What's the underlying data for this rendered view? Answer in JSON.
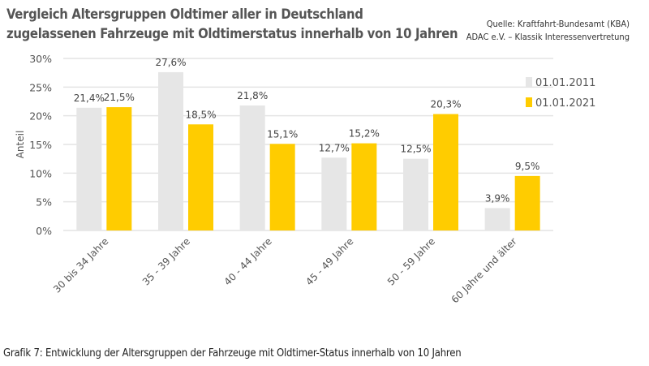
{
  "chart_data": {
    "type": "bar",
    "title": [
      "Vergleich Altersgruppen Oldtimer aller in Deutschland",
      "zugelassenen Fahrzeuge mit Oldtimerstatus innerhalb von 10 Jahren"
    ],
    "source": [
      "Quelle: Kraftfahrt-Bundesamt (KBA)",
      "ADAC e.V. – Klassik Interessenvertretung"
    ],
    "caption": "Grafik 7: Entwicklung der Altersgruppen der Fahrzeuge mit Oldtimer-Status innerhalb von 10 Jahren",
    "ylabel": "Anteil",
    "xlabel": "",
    "ylim": [
      0,
      30
    ],
    "yticks": [
      "0%",
      "5%",
      "10%",
      "15%",
      "20%",
      "25%",
      "30%"
    ],
    "grid": true,
    "legend_position": "right",
    "categories": [
      "30 bis 34 Jahre",
      "35 - 39 Jahre",
      "40 - 44 Jahre",
      "45 - 49 Jahre",
      "50 - 59 Jahre",
      "60 Jahre und älter"
    ],
    "series": [
      {
        "name": "01.01.2011",
        "color": "#e6e6e6",
        "values": [
          21.4,
          27.6,
          21.8,
          12.7,
          12.5,
          3.9
        ],
        "labels": [
          "21,4%",
          "27,6%",
          "21,8%",
          "12,7%",
          "12,5%",
          "3,9%"
        ]
      },
      {
        "name": "01.01.2021",
        "color": "#ffcc00",
        "values": [
          21.5,
          18.5,
          15.1,
          15.2,
          20.3,
          9.5
        ],
        "labels": [
          "21,5%",
          "18,5%",
          "15,1%",
          "15,2%",
          "20,3%",
          "9,5%"
        ]
      }
    ]
  }
}
